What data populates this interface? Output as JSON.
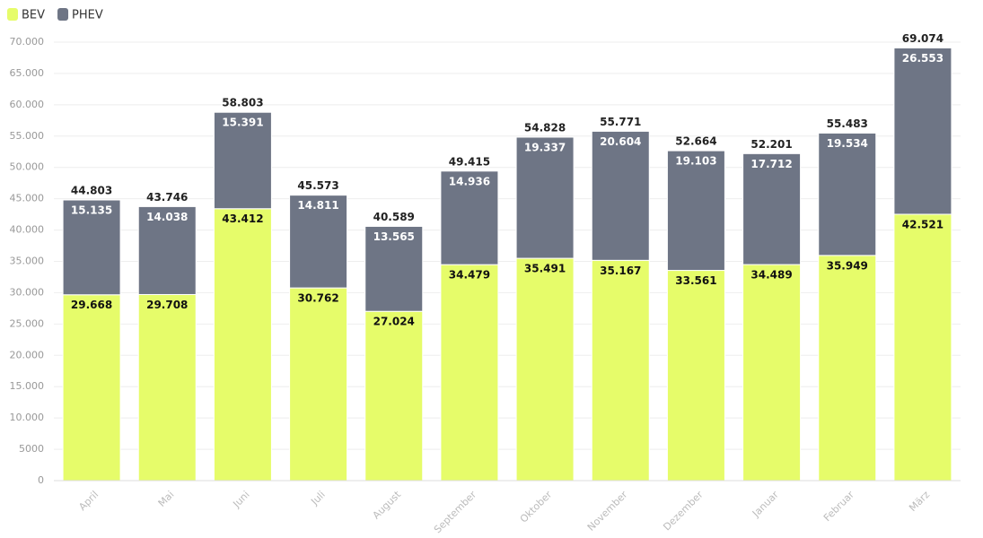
{
  "chart_data": {
    "type": "stacked_bar",
    "categories": [
      "April",
      "Mai",
      "Juni",
      "Juli",
      "August",
      "September",
      "Oktober",
      "November",
      "Dezember",
      "Januar",
      "Februar",
      "März"
    ],
    "series": [
      {
        "name": "BEV",
        "color": "#e6fc6a",
        "values": [
          29668,
          29708,
          43412,
          30762,
          27024,
          34479,
          35491,
          35167,
          33561,
          34489,
          35949,
          42521
        ],
        "value_labels": [
          "29.668",
          "29.708",
          "43.412",
          "30.762",
          "27.024",
          "34.479",
          "35.491",
          "35.167",
          "33.561",
          "34.489",
          "35.949",
          "42.521"
        ]
      },
      {
        "name": "PHEV",
        "color": "#6e7585",
        "values": [
          15135,
          14038,
          15391,
          14811,
          13565,
          14936,
          19337,
          20604,
          19103,
          17712,
          19534,
          26553
        ],
        "value_labels": [
          "15.135",
          "14.038",
          "15.391",
          "14.811",
          "13.565",
          "14.936",
          "19.337",
          "20.604",
          "19.103",
          "17.712",
          "19.534",
          "26.553"
        ]
      }
    ],
    "totals": {
      "values": [
        44803,
        43746,
        58803,
        45573,
        40589,
        49415,
        54828,
        55771,
        52664,
        52201,
        55483,
        69074
      ],
      "value_labels": [
        "44.803",
        "43.746",
        "58.803",
        "45.573",
        "40.589",
        "49.415",
        "54.828",
        "55.771",
        "52.664",
        "52.201",
        "55.483",
        "69.074"
      ]
    },
    "ylim": [
      0,
      70000
    ],
    "yticks": [
      0,
      5000,
      {
        "value": 10000,
        "label": "10.000"
      },
      {
        "value": 15000,
        "label": "15.000"
      },
      {
        "value": 20000,
        "label": "20.000"
      },
      {
        "value": 25000,
        "label": "25.000"
      },
      {
        "value": 30000,
        "label": "30.000"
      },
      {
        "value": 35000,
        "label": "35.000"
      },
      {
        "value": 40000,
        "label": "40.000"
      },
      {
        "value": 45000,
        "label": "45.000"
      },
      {
        "value": 50000,
        "label": "50.000"
      },
      {
        "value": 55000,
        "label": "55.000"
      },
      {
        "value": 60000,
        "label": "60.000"
      },
      {
        "value": 65000,
        "label": "65.000"
      },
      {
        "value": 70000,
        "label": "70.000"
      }
    ],
    "grid": true,
    "legend": "top-left"
  }
}
